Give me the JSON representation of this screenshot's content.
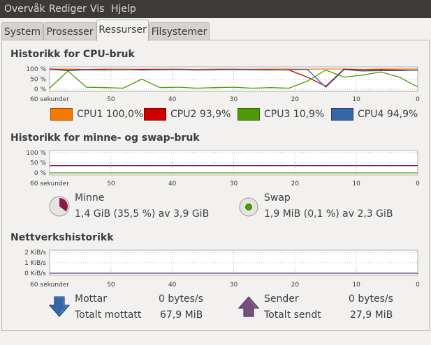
{
  "menu": [
    "Overvåk",
    "Rediger",
    "Vis",
    "Hjelp"
  ],
  "tabs": [
    {
      "label": "System",
      "active": false
    },
    {
      "label": "Prosesser",
      "active": false
    },
    {
      "label": "Ressurser",
      "active": true
    },
    {
      "label": "Filsystemer",
      "active": false
    }
  ],
  "cpu": {
    "title": "Historikk for CPU-bruk",
    "ytick_labels": [
      "100 %",
      "50 %",
      "0 %"
    ],
    "xtick_labels": [
      "60 sekunder",
      "50",
      "40",
      "30",
      "20",
      "10",
      "0"
    ],
    "legend": [
      {
        "label": "CPU1",
        "value": "100,0%",
        "color": "#f57900"
      },
      {
        "label": "CPU2",
        "value": "93,9%",
        "color": "#cc0000"
      },
      {
        "label": "CPU3",
        "value": "10,9%",
        "color": "#4e9a06"
      },
      {
        "label": "CPU4",
        "value": "94,9%",
        "color": "#3465a4"
      }
    ]
  },
  "memory": {
    "title": "Historikk for minne- og swap-bruk",
    "ytick_labels": [
      "100 %",
      "50 %",
      "0 %"
    ],
    "xtick_labels": [
      "60 sekunder",
      "50",
      "40",
      "30",
      "20",
      "10",
      "0"
    ],
    "mem_label": "Minne",
    "mem_value": "1,4 GiB (35,5 %) av 3,9 GiB",
    "mem_color": "#8f1a4a",
    "mem_fraction": 0.355,
    "swap_label": "Swap",
    "swap_value": "1,9 MiB (0,1 %) av 2,3 GiB",
    "swap_color": "#4e9a06",
    "swap_fraction": 0.001
  },
  "network": {
    "title": "Nettverkshistorikk",
    "ytick_labels": [
      "2 KiB/s",
      "1 KiB/s",
      "0 KiB/s"
    ],
    "xtick_labels": [
      "60 sekunder",
      "50",
      "40",
      "30",
      "20",
      "10",
      "0"
    ],
    "receiving_label": "Mottar",
    "receiving_value": "0 bytes/s",
    "total_received_label": "Totalt mottatt",
    "total_received_value": "67,9 MiB",
    "sending_label": "Sender",
    "sending_value": "0 bytes/s",
    "total_sent_label": "Totalt sendt",
    "total_sent_value": "27,9 MiB",
    "receiving_color": "#3465a4",
    "sending_color": "#75507b"
  },
  "chart_data": [
    {
      "type": "line",
      "title": "Historikk for CPU-bruk",
      "xlabel": "",
      "ylabel": "",
      "x": [
        60,
        57,
        54,
        51,
        48,
        45,
        42,
        39,
        36,
        33,
        30,
        27,
        24,
        21,
        18,
        15,
        12,
        9,
        6,
        3,
        0
      ],
      "xlim": [
        60,
        0
      ],
      "ylim": [
        0,
        100
      ],
      "ytick_labels": [
        "100 %",
        "50 %",
        "0 %"
      ],
      "xtick_labels": [
        "60 sekunder",
        "50",
        "40",
        "30",
        "20",
        "10",
        "0"
      ],
      "grid": true,
      "legend_position": "bottom",
      "series": [
        {
          "name": "CPU1",
          "color": "#f57900",
          "values": [
            100,
            100,
            98,
            100,
            100,
            99,
            100,
            100,
            98,
            100,
            100,
            99,
            100,
            100,
            99,
            100,
            100,
            98,
            100,
            100,
            100
          ]
        },
        {
          "name": "CPU2",
          "color": "#cc0000",
          "values": [
            100,
            95,
            98,
            97,
            96,
            98,
            97,
            98,
            96,
            97,
            98,
            97,
            96,
            95,
            60,
            15,
            100,
            95,
            96,
            95,
            94
          ]
        },
        {
          "name": "CPU3",
          "color": "#4e9a06",
          "values": [
            5,
            90,
            10,
            8,
            5,
            50,
            8,
            10,
            5,
            8,
            10,
            5,
            8,
            5,
            40,
            95,
            60,
            70,
            85,
            60,
            11
          ]
        },
        {
          "name": "CPU4",
          "color": "#3465a4",
          "values": [
            98,
            92,
            96,
            95,
            97,
            95,
            96,
            97,
            95,
            96,
            97,
            96,
            95,
            96,
            98,
            10,
            97,
            90,
            92,
            92,
            95
          ]
        }
      ]
    },
    {
      "type": "line",
      "title": "Historikk for minne- og swap-bruk",
      "xlabel": "",
      "ylabel": "",
      "x": [
        60,
        0
      ],
      "xlim": [
        60,
        0
      ],
      "ylim": [
        0,
        100
      ],
      "ytick_labels": [
        "100 %",
        "50 %",
        "0 %"
      ],
      "xtick_labels": [
        "60 sekunder",
        "50",
        "40",
        "30",
        "20",
        "10",
        "0"
      ],
      "grid": true,
      "series": [
        {
          "name": "Minne",
          "color": "#8f1a4a",
          "values": [
            35.5,
            35.5
          ]
        },
        {
          "name": "Swap",
          "color": "#4e9a06",
          "values": [
            0.1,
            0.1
          ]
        }
      ]
    },
    {
      "type": "line",
      "title": "Nettverkshistorikk",
      "xlabel": "",
      "ylabel": "",
      "x": [
        60,
        0
      ],
      "xlim": [
        60,
        0
      ],
      "ylim": [
        0,
        2
      ],
      "ytick_labels": [
        "2 KiB/s",
        "1 KiB/s",
        "0 KiB/s"
      ],
      "xtick_labels": [
        "60 sekunder",
        "50",
        "40",
        "30",
        "20",
        "10",
        "0"
      ],
      "grid": true,
      "series": [
        {
          "name": "Mottar",
          "color": "#3465a4",
          "values": [
            0,
            0
          ]
        },
        {
          "name": "Sender",
          "color": "#75507b",
          "values": [
            0,
            0
          ]
        }
      ]
    }
  ]
}
